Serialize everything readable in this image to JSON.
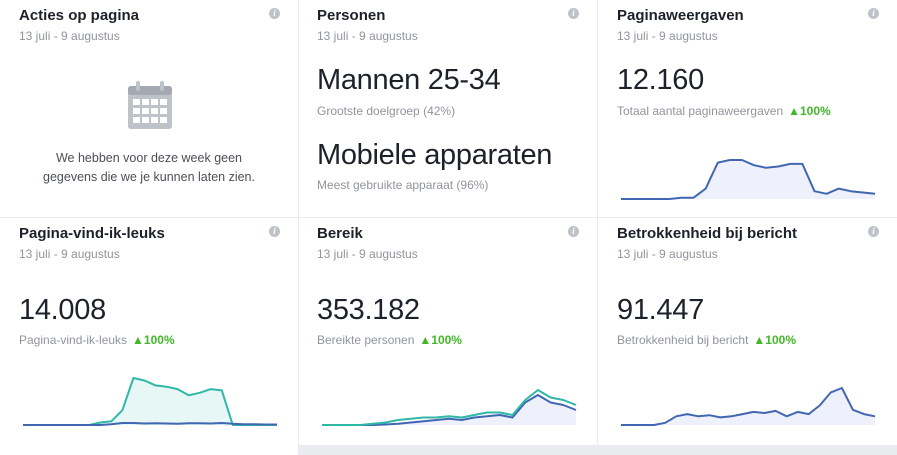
{
  "date_range": "13 juli - 9 augustus",
  "info_glyph": "i",
  "cards": {
    "acties": {
      "title": "Acties op pagina",
      "icon": "calendar-icon",
      "empty_message": "We hebben voor deze week geen gegevens die we je kunnen laten zien."
    },
    "personen": {
      "title": "Personen",
      "primary_value": "Mannen 25-34",
      "primary_caption": "Grootste doelgroep (42%)",
      "secondary_value": "Mobiele apparaten",
      "secondary_caption": "Meest gebruikte apparaat (96%)"
    },
    "paginaweergaven": {
      "title": "Paginaweergaven",
      "value": "12.160",
      "caption": "Totaal aantal paginaweergaven",
      "change": "▲100%",
      "series": [
        0,
        0,
        0,
        0,
        0,
        0.5,
        0.5,
        4,
        14,
        15,
        15,
        13,
        12,
        12.5,
        13.5,
        13.5,
        3,
        2,
        4,
        3,
        2.5,
        2
      ]
    },
    "vindikleuks": {
      "title": "Pagina-vind-ik-leuks",
      "value": "14.008",
      "caption": "Pagina-vind-ik-leuks",
      "change": "▲100%",
      "series": [
        0,
        0,
        0,
        0,
        0,
        0,
        0,
        1,
        1.5,
        6,
        19,
        18,
        16,
        15.5,
        14.5,
        12,
        13,
        14.5,
        14,
        0,
        0,
        0,
        0,
        0
      ],
      "series_secondary": [
        0,
        0,
        0,
        0,
        0,
        0,
        0,
        0,
        0.3,
        0.8,
        0.8,
        0.6,
        0.7,
        0.6,
        0.5,
        0.7,
        0.7,
        0.6,
        0.8,
        0.5,
        0.3,
        0.3,
        0.2,
        0.2
      ]
    },
    "bereik": {
      "title": "Bereik",
      "value": "353.182",
      "caption": "Bereikte personen",
      "change": "▲100%",
      "series": [
        0,
        0,
        0,
        0,
        0.5,
        1,
        2,
        2.5,
        3,
        3,
        3.5,
        3,
        4,
        5,
        5,
        4,
        10,
        14,
        11,
        10,
        8
      ],
      "series_secondary": [
        0,
        0,
        0,
        0,
        0,
        0.2,
        0.5,
        1,
        1.5,
        2,
        2.5,
        2,
        3,
        3.5,
        4,
        3,
        9,
        12,
        9,
        8,
        6
      ]
    },
    "betrokkenheid": {
      "title": "Betrokkenheid bij bericht",
      "value": "91.447",
      "caption": "Betrokkenheid bij bericht",
      "change": "▲100%",
      "series": [
        0,
        0,
        0,
        0,
        1,
        4,
        5,
        4,
        4.5,
        3.5,
        4,
        5,
        6,
        5.5,
        6.5,
        4,
        6,
        5,
        9,
        15,
        17,
        7,
        5,
        4
      ]
    }
  },
  "colors": {
    "line_blue": "#4267b2",
    "line_teal": "#2fb7a8",
    "fill_blue": "#eef0fb",
    "fill_teal": "#e6f7f5",
    "up_green": "#42b72a"
  }
}
